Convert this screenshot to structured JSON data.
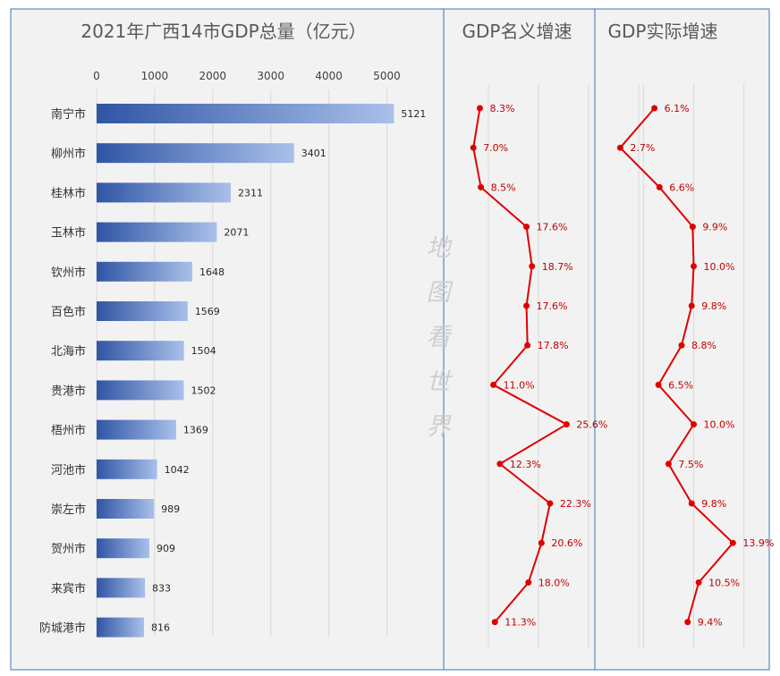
{
  "watermark": "地图看世界",
  "colors": {
    "panel_bg": "#f2f2f2",
    "panel_border": "#3b74b4",
    "bar_dark": "#2f55a4",
    "bar_light": "#a9c0ea",
    "line_red": "#e00000",
    "label_red": "#c00000",
    "grid": "#d9d9d9"
  },
  "chart_data": [
    {
      "type": "bar",
      "title": "2021年广西14市GDP总量（亿元）",
      "orientation": "horizontal",
      "categories": [
        "南宁市",
        "柳州市",
        "桂林市",
        "玉林市",
        "钦州市",
        "百色市",
        "北海市",
        "贵港市",
        "梧州市",
        "河池市",
        "崇左市",
        "贺州市",
        "来宾市",
        "防城港市"
      ],
      "values": [
        5121,
        3401,
        2311,
        2071,
        1648,
        1569,
        1504,
        1502,
        1369,
        1042,
        989,
        909,
        833,
        816
      ],
      "x_ticks": [
        "0",
        "1000",
        "2000",
        "3000",
        "4000",
        "5000"
      ],
      "xlim": [
        0,
        5600
      ],
      "axis_position": "top",
      "grid": true
    },
    {
      "type": "line",
      "title": "GDP名义增速",
      "categories": [
        "南宁市",
        "柳州市",
        "桂林市",
        "玉林市",
        "钦州市",
        "百色市",
        "北海市",
        "贵港市",
        "梧州市",
        "河池市",
        "崇左市",
        "贺州市",
        "来宾市",
        "防城港市"
      ],
      "values": [
        8.3,
        7.0,
        8.5,
        17.6,
        18.7,
        17.6,
        17.8,
        11.0,
        25.6,
        12.3,
        22.3,
        20.6,
        18.0,
        11.3
      ],
      "labels": [
        "8.3%",
        "7.0%",
        "8.5%",
        "17.6%",
        "18.7%",
        "17.6%",
        "17.8%",
        "11.0%",
        "25.6%",
        "12.3%",
        "22.3%",
        "20.6%",
        "18.0%",
        "11.3%"
      ],
      "xlim": [
        0,
        40
      ],
      "grid": true
    },
    {
      "type": "line",
      "title": "GDP实际增速",
      "categories": [
        "南宁市",
        "柳州市",
        "桂林市",
        "玉林市",
        "钦州市",
        "百色市",
        "北海市",
        "贵港市",
        "梧州市",
        "河池市",
        "崇左市",
        "贺州市",
        "来宾市",
        "防城港市"
      ],
      "values": [
        6.1,
        2.7,
        6.6,
        9.9,
        10.0,
        9.8,
        8.8,
        6.5,
        10.0,
        7.5,
        9.8,
        13.9,
        10.5,
        9.4
      ],
      "labels": [
        "6.1%",
        "2.7%",
        "6.6%",
        "9.9%",
        "10.0%",
        "9.8%",
        "8.8%",
        "6.5%",
        "10.0%",
        "7.5%",
        "9.8%",
        "13.9%",
        "10.5%",
        "9.4%"
      ],
      "xlim": [
        0,
        20
      ],
      "grid": true
    }
  ]
}
